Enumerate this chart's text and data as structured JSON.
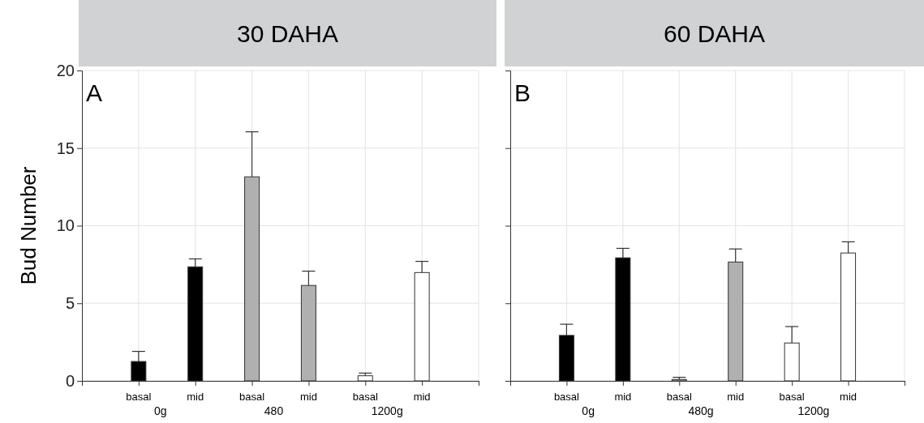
{
  "chart_data": [
    {
      "type": "bar",
      "title": "30 DAHA",
      "subtitle": "A",
      "ylabel": "Bud Number",
      "categories": [
        "basal",
        "mid",
        "basal",
        "mid",
        "basal",
        "mid"
      ],
      "values": [
        1.25,
        7.35,
        13.15,
        6.15,
        0.33,
        6.98
      ],
      "errors": [
        [
          1.25,
          1.9
        ],
        [
          7.35,
          7.86
        ],
        [
          13.15,
          16.05
        ],
        [
          6.15,
          7.07
        ],
        [
          0.33,
          0.5
        ],
        [
          6.98,
          7.7
        ]
      ],
      "colors": [
        "#000000",
        "#000000",
        "#b0b0b0",
        "#b0b0b0",
        "#ffffff",
        "#ffffff"
      ],
      "annotations": [
        "0g",
        "480",
        "1200g"
      ],
      "ylim": [
        0,
        20
      ],
      "yticks": [
        0,
        5,
        10,
        15,
        20
      ],
      "grid": true
    },
    {
      "type": "bar",
      "title": "60 DAHA",
      "subtitle": "B",
      "categories": [
        "basal",
        "mid",
        "basal",
        "mid",
        "basal",
        "mid"
      ],
      "values": [
        2.93,
        7.93,
        0.09,
        7.66,
        2.44,
        8.24
      ],
      "errors": [
        [
          2.93,
          3.65
        ],
        [
          7.93,
          8.54
        ],
        [
          0.09,
          0.23
        ],
        [
          7.66,
          8.5
        ],
        [
          2.44,
          3.5
        ],
        [
          8.24,
          8.96
        ]
      ],
      "colors": [
        "#000000",
        "#000000",
        "#b0b0b0",
        "#b0b0b0",
        "#ffffff",
        "#ffffff"
      ],
      "annotations": [
        "0g",
        "480g",
        "1200g"
      ],
      "ylim": [
        0,
        20
      ],
      "yticks": [
        0,
        5,
        10,
        15,
        20
      ],
      "grid": true,
      "tick_labels": "x"
    }
  ]
}
